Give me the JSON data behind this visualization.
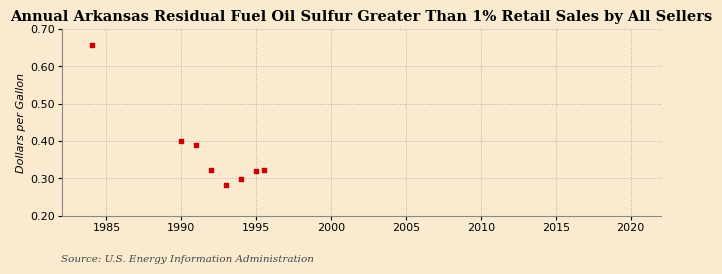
{
  "title": "Annual Arkansas Residual Fuel Oil Sulfur Greater Than 1% Retail Sales by All Sellers",
  "ylabel": "Dollars per Gallon",
  "source": "Source: U.S. Energy Information Administration",
  "x_data": [
    1984,
    1990,
    1991,
    1992,
    1993,
    1994,
    1995,
    1995.5
  ],
  "y_data": [
    0.656,
    0.4,
    0.388,
    0.322,
    0.282,
    0.298,
    0.32,
    0.322
  ],
  "xlim": [
    1982,
    2022
  ],
  "ylim": [
    0.2,
    0.7
  ],
  "xticks": [
    1985,
    1990,
    1995,
    2000,
    2005,
    2010,
    2015,
    2020
  ],
  "yticks": [
    0.2,
    0.3,
    0.4,
    0.5,
    0.6,
    0.7
  ],
  "marker_color": "#cc0000",
  "bg_color": "#faebd0",
  "grid_color": "#aaaaaa",
  "title_fontsize": 10.5,
  "label_fontsize": 8,
  "tick_fontsize": 8,
  "source_fontsize": 7.5
}
